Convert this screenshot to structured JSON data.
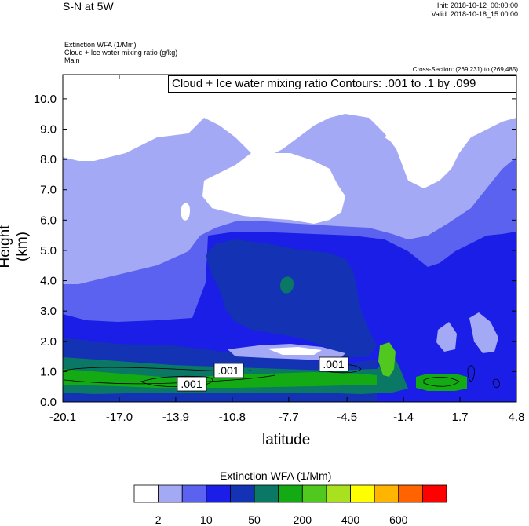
{
  "header": {
    "title": "S-N at 5W",
    "init": "Init: 2018-10-12_00:00:00",
    "valid": "Valid: 2018-10-18_15:00:00",
    "field1": "Extinction WFA   (1/Mm)",
    "field2": "Cloud + Ice water mixing ratio   (g/kg)",
    "field3": "Main",
    "cross_section": "Cross-Section: (269,231) to (269,485)"
  },
  "contour_note": "Cloud + Ice water mixing ratio Contours: .001 to .1 by .099",
  "chart_data": {
    "type": "heatmap",
    "xlabel": "latitude",
    "ylabel": "Height (km)",
    "xticks": [
      "-20.1",
      "-17.0",
      "-13.9",
      "-10.8",
      "-7.7",
      "-4.5",
      "-1.4",
      "1.7",
      "4.8"
    ],
    "yticks": [
      "0.0",
      "1.0",
      "2.0",
      "3.0",
      "4.0",
      "5.0",
      "6.0",
      "7.0",
      "8.0",
      "9.0",
      "10.0"
    ],
    "xlim": [
      -20.1,
      4.8
    ],
    "ylim": [
      0,
      10.8
    ],
    "contour_labels": [
      ".001",
      ".001",
      ".001"
    ],
    "colorbar": {
      "title": "Extinction WFA  (1/Mm)",
      "colors": [
        "#ffffff",
        "#a4a9f5",
        "#5b62f0",
        "#1a1ee6",
        "#1432b4",
        "#0a7864",
        "#14aa14",
        "#50c81e",
        "#aae11e",
        "#ffff00",
        "#ffb400",
        "#ff6400",
        "#ff0000"
      ],
      "labels": [
        "2",
        "10",
        "50",
        "200",
        "400",
        "600"
      ]
    }
  }
}
